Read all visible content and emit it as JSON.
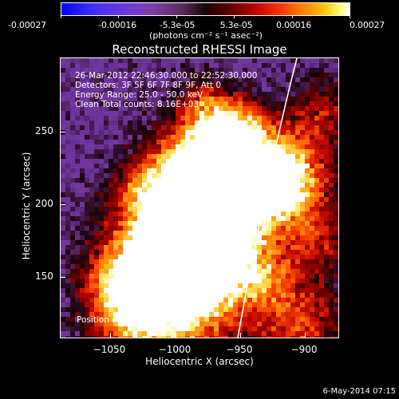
{
  "colorbar": {
    "tick_labels": [
      "-0.00027",
      "-0.00016",
      "-5.3e-05",
      "5.3e-05",
      "0.00016",
      "0.00027"
    ],
    "units": "(photons cm⁻² s⁻¹ asec⁻²)"
  },
  "plot": {
    "title": "Reconstructed RHESSI Image",
    "info_lines": [
      "26-Mar-2012 22:46:30.000 to 22:52:30.000",
      "Detectors: 3F 5F 6F 7F 8F 9F, Att 0",
      "Energy Range: 25.0 - 50.0 keV",
      "Clean    Total counts: 8.16E+03"
    ],
    "peak_text": "Position of Peak = [-954,220]",
    "xlabel": "Heliocentric X (arcsec)",
    "ylabel": "Heliocentric Y (arcsec)",
    "x_ticks": [
      "−1050",
      "−1000",
      "−950",
      "−900"
    ],
    "y_ticks": [
      "250",
      "200",
      "150"
    ]
  },
  "footer": {
    "date": "6-May-2014 07:15"
  },
  "colors": {
    "background": "#000000",
    "axis": "#ffffff",
    "limb": "#ffffff"
  }
}
